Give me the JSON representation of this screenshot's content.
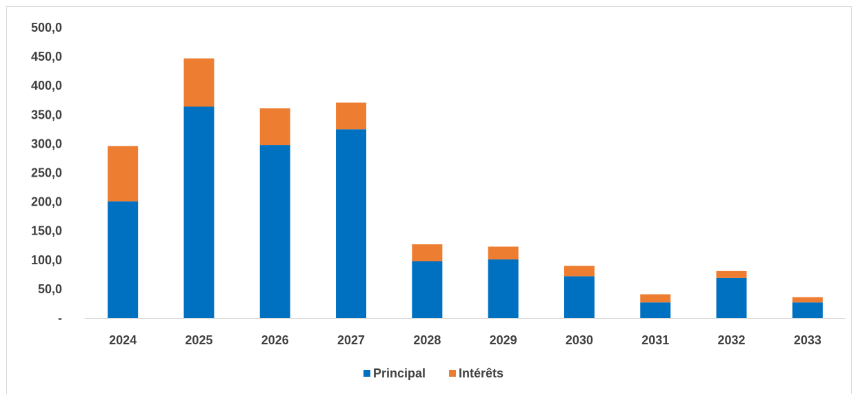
{
  "chart_data": {
    "type": "bar",
    "stacked": true,
    "categories": [
      "2024",
      "2025",
      "2026",
      "2027",
      "2028",
      "2029",
      "2030",
      "2031",
      "2032",
      "2033"
    ],
    "series": [
      {
        "name": "Principal",
        "color": "#0070C0",
        "values": [
          201,
          364,
          298,
          325,
          98,
          101,
          72,
          27,
          69,
          27
        ]
      },
      {
        "name": "Intérêts",
        "color": "#ED7D31",
        "values": [
          95,
          83,
          63,
          46,
          29,
          22,
          18,
          14,
          12,
          9
        ]
      }
    ],
    "ylim": [
      0,
      500
    ],
    "yticks": [
      0,
      50,
      100,
      150,
      200,
      250,
      300,
      350,
      400,
      450,
      500
    ],
    "ytick_labels": [
      "-",
      "50,0",
      "100,0",
      "150,0",
      "200,0",
      "250,0",
      "300,0",
      "350,0",
      "400,0",
      "450,0",
      "500,0"
    ],
    "grid": false,
    "legend_position": "bottom"
  }
}
